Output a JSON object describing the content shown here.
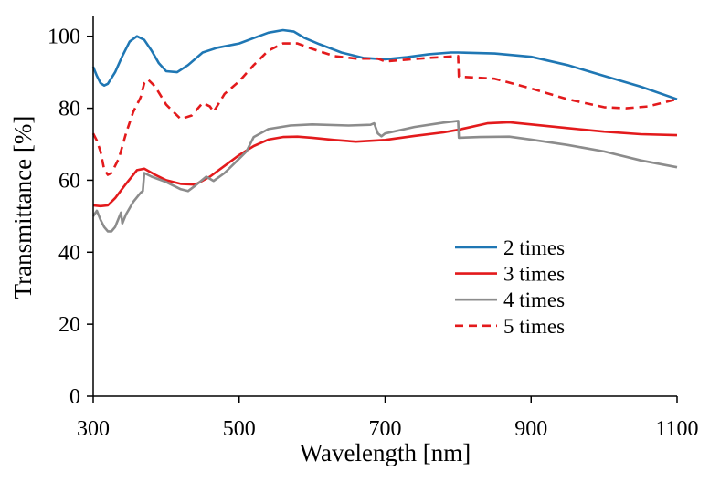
{
  "chart_data": {
    "type": "line",
    "title": "",
    "xlabel": "Wavelength [nm]",
    "ylabel": "Transmittance [%]",
    "xlim": [
      300,
      1100
    ],
    "ylim": [
      0,
      105
    ],
    "xticks": [
      300,
      500,
      700,
      900,
      1100
    ],
    "yticks": [
      0,
      20,
      40,
      60,
      80,
      100
    ],
    "grid": false,
    "legend_position": "lower-right",
    "series": [
      {
        "name": "2 times",
        "color": "#1f77b4",
        "style": "solid",
        "points": [
          [
            300,
            91.5
          ],
          [
            305,
            89
          ],
          [
            310,
            87
          ],
          [
            315,
            86.3
          ],
          [
            320,
            86.8
          ],
          [
            330,
            90
          ],
          [
            340,
            94.5
          ],
          [
            350,
            98.5
          ],
          [
            360,
            100
          ],
          [
            370,
            99
          ],
          [
            380,
            96
          ],
          [
            390,
            92.5
          ],
          [
            400,
            90.3
          ],
          [
            415,
            90
          ],
          [
            430,
            92
          ],
          [
            450,
            95.5
          ],
          [
            470,
            96.8
          ],
          [
            500,
            98
          ],
          [
            520,
            99.5
          ],
          [
            540,
            101
          ],
          [
            560,
            101.7
          ],
          [
            575,
            101.3
          ],
          [
            590,
            99.5
          ],
          [
            610,
            97.8
          ],
          [
            640,
            95.5
          ],
          [
            670,
            94
          ],
          [
            700,
            93.6
          ],
          [
            730,
            94.2
          ],
          [
            760,
            95
          ],
          [
            790,
            95.5
          ],
          [
            800,
            95.5
          ],
          [
            850,
            95.2
          ],
          [
            900,
            94.3
          ],
          [
            950,
            92
          ],
          [
            1000,
            89
          ],
          [
            1050,
            86
          ],
          [
            1100,
            82.5
          ]
        ]
      },
      {
        "name": "3 times",
        "color": "#e31a1c",
        "style": "solid",
        "points": [
          [
            300,
            53
          ],
          [
            310,
            52.8
          ],
          [
            320,
            53
          ],
          [
            330,
            55
          ],
          [
            345,
            59
          ],
          [
            360,
            62.8
          ],
          [
            370,
            63.2
          ],
          [
            385,
            61.5
          ],
          [
            400,
            60
          ],
          [
            420,
            59
          ],
          [
            440,
            58.8
          ],
          [
            460,
            61
          ],
          [
            480,
            64
          ],
          [
            500,
            67
          ],
          [
            520,
            69.5
          ],
          [
            540,
            71.3
          ],
          [
            560,
            72
          ],
          [
            580,
            72.1
          ],
          [
            600,
            71.8
          ],
          [
            630,
            71.2
          ],
          [
            660,
            70.7
          ],
          [
            700,
            71.2
          ],
          [
            740,
            72.3
          ],
          [
            780,
            73.3
          ],
          [
            800,
            74
          ],
          [
            840,
            75.8
          ],
          [
            870,
            76.1
          ],
          [
            900,
            75.5
          ],
          [
            950,
            74.5
          ],
          [
            1000,
            73.5
          ],
          [
            1050,
            72.8
          ],
          [
            1100,
            72.5
          ]
        ]
      },
      {
        "name": "4 times",
        "color": "#8c8c8c",
        "style": "solid",
        "points": [
          [
            300,
            50
          ],
          [
            305,
            51.5
          ],
          [
            310,
            49
          ],
          [
            315,
            47
          ],
          [
            320,
            45.8
          ],
          [
            325,
            45.8
          ],
          [
            330,
            47
          ],
          [
            335,
            49.5
          ],
          [
            338,
            51
          ],
          [
            340,
            48
          ],
          [
            345,
            50.5
          ],
          [
            355,
            54
          ],
          [
            365,
            56.5
          ],
          [
            368,
            57
          ],
          [
            370,
            62
          ],
          [
            380,
            61
          ],
          [
            400,
            59.5
          ],
          [
            420,
            57.5
          ],
          [
            430,
            57
          ],
          [
            440,
            58.5
          ],
          [
            455,
            61
          ],
          [
            465,
            59.8
          ],
          [
            480,
            62
          ],
          [
            500,
            66
          ],
          [
            510,
            68
          ],
          [
            520,
            72
          ],
          [
            540,
            74.2
          ],
          [
            570,
            75.2
          ],
          [
            600,
            75.5
          ],
          [
            650,
            75.2
          ],
          [
            680,
            75.4
          ],
          [
            685,
            75.8
          ],
          [
            690,
            73
          ],
          [
            695,
            72.2
          ],
          [
            700,
            73
          ],
          [
            740,
            74.8
          ],
          [
            780,
            76
          ],
          [
            800,
            76.5
          ],
          [
            801,
            71.8
          ],
          [
            830,
            72
          ],
          [
            870,
            72.1
          ],
          [
            900,
            71.3
          ],
          [
            950,
            69.8
          ],
          [
            1000,
            68
          ],
          [
            1050,
            65.5
          ],
          [
            1100,
            63.6
          ]
        ]
      },
      {
        "name": "5 times",
        "color": "#e31a1c",
        "style": "dashed",
        "points": [
          [
            300,
            73
          ],
          [
            305,
            71
          ],
          [
            310,
            68
          ],
          [
            315,
            63
          ],
          [
            320,
            61.5
          ],
          [
            325,
            62
          ],
          [
            335,
            66
          ],
          [
            345,
            73
          ],
          [
            355,
            79
          ],
          [
            365,
            83
          ],
          [
            370,
            87
          ],
          [
            375,
            88
          ],
          [
            385,
            86
          ],
          [
            400,
            81
          ],
          [
            420,
            77
          ],
          [
            435,
            78
          ],
          [
            450,
            81.5
          ],
          [
            460,
            80.5
          ],
          [
            465,
            79
          ],
          [
            480,
            84
          ],
          [
            500,
            87.5
          ],
          [
            520,
            92
          ],
          [
            540,
            96
          ],
          [
            560,
            98
          ],
          [
            580,
            98
          ],
          [
            600,
            96.5
          ],
          [
            630,
            94.5
          ],
          [
            660,
            93.8
          ],
          [
            690,
            93.8
          ],
          [
            700,
            93
          ],
          [
            730,
            93.5
          ],
          [
            760,
            94
          ],
          [
            800,
            94.5
          ],
          [
            801,
            88.8
          ],
          [
            850,
            88.2
          ],
          [
            900,
            85.5
          ],
          [
            950,
            82.5
          ],
          [
            1000,
            80.3
          ],
          [
            1030,
            80
          ],
          [
            1060,
            80.5
          ],
          [
            1100,
            82.5
          ]
        ]
      }
    ]
  }
}
